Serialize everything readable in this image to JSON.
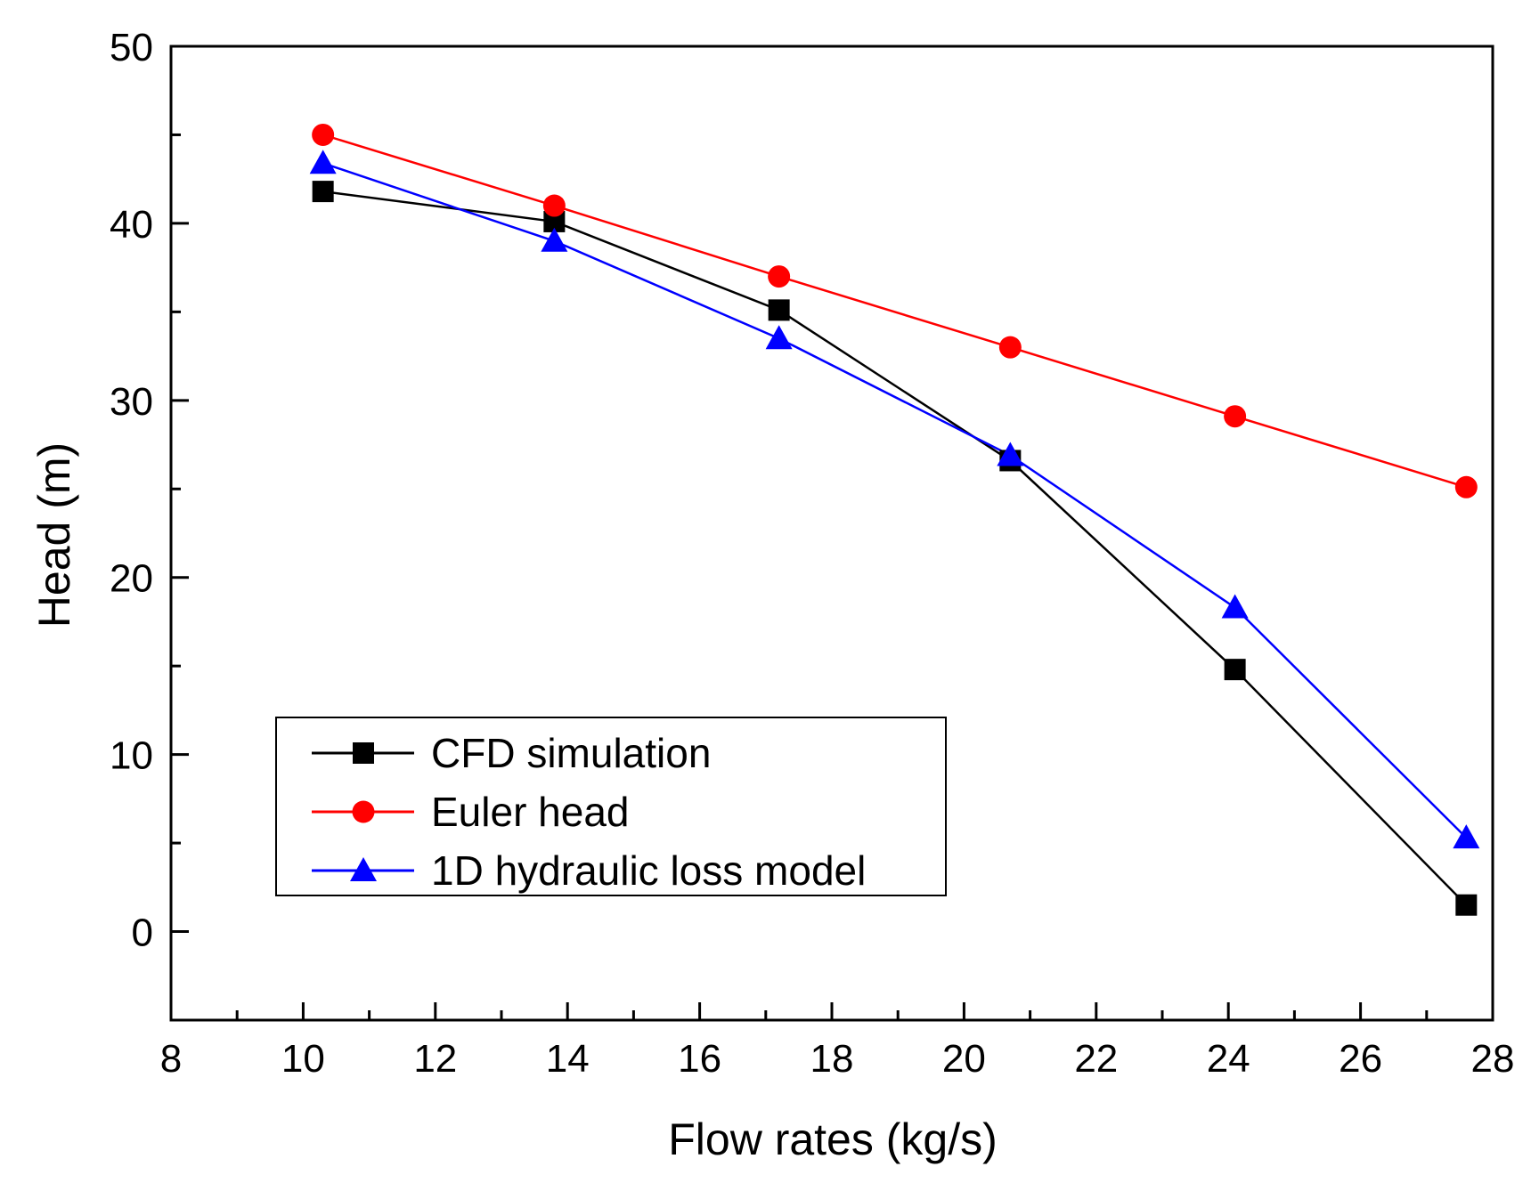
{
  "chart_data": {
    "type": "line",
    "title": "",
    "xlabel": "Flow rates  (kg/s)",
    "ylabel": "Head (m)",
    "xlim": [
      8,
      28
    ],
    "ylim": [
      -5,
      50
    ],
    "xticks": [
      8,
      10,
      12,
      14,
      16,
      18,
      20,
      22,
      24,
      26,
      28
    ],
    "yticks": [
      0,
      10,
      20,
      30,
      40,
      50
    ],
    "x": [
      10.3,
      13.8,
      17.2,
      20.7,
      24.1,
      27.6
    ],
    "series": [
      {
        "name": "CFD simulation",
        "marker": "square",
        "color": "#000000",
        "values": [
          41.8,
          40.1,
          35.1,
          26.6,
          14.8,
          1.5
        ]
      },
      {
        "name": "Euler head",
        "marker": "circle",
        "color": "#ff0000",
        "values": [
          45.0,
          41.0,
          37.0,
          33.0,
          29.1,
          25.1
        ]
      },
      {
        "name": "1D hydraulic loss model",
        "marker": "triangle",
        "color": "#0000ff",
        "values": [
          43.4,
          39.0,
          33.5,
          26.9,
          18.3,
          5.3
        ]
      }
    ],
    "legend": "bottom-left",
    "grid": false
  }
}
